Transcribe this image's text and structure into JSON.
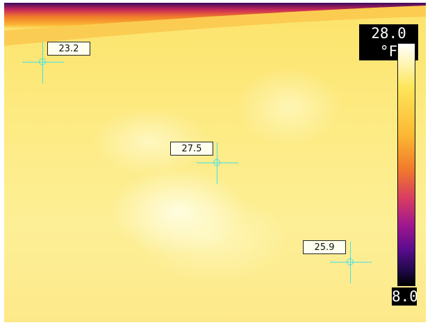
{
  "scale": {
    "max_label": "28.0 °F",
    "min_label": "8.0",
    "palette": [
      "#000000",
      "#1e0848",
      "#5a0c8e",
      "#a0178e",
      "#d83c62",
      "#f07a2a",
      "#fbb733",
      "#fde65a",
      "#fff8c8",
      "#ffffff"
    ]
  },
  "spots": [
    {
      "label": "23.2"
    },
    {
      "label": "27.5"
    },
    {
      "label": "25.9"
    }
  ],
  "colors": {
    "crosshair": "#44e0e8",
    "background": "#fde98a"
  }
}
